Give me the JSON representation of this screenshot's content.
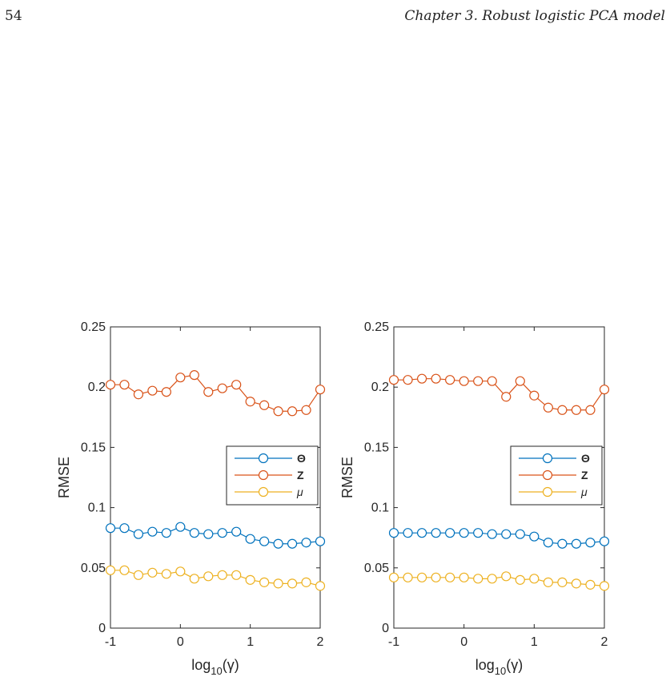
{
  "header": {
    "page_number": "54",
    "running_head": "Chapter 3.  Robust logistic PCA model"
  },
  "chart_data": [
    {
      "type": "line",
      "ylabel": "RMSE",
      "xlabel_parts": {
        "base": "log",
        "sub": "10",
        "arg": "(γ)"
      },
      "xlim": [
        -1,
        2
      ],
      "ylim": [
        0,
        0.25
      ],
      "x_ticks": [
        "-1",
        "0",
        "1",
        "2"
      ],
      "y_ticks": [
        "0",
        "0.05",
        "0.1",
        "0.15",
        "0.2",
        "0.25"
      ],
      "legend_position": "right-middle",
      "x": [
        -1,
        -0.8,
        -0.6,
        -0.4,
        -0.2,
        0.0,
        0.2,
        0.4,
        0.6,
        0.8,
        1.0,
        1.2,
        1.4,
        1.6,
        1.8,
        2.0
      ],
      "series": [
        {
          "name": "Θ",
          "color": "#0072BD",
          "values": [
            0.083,
            0.083,
            0.078,
            0.08,
            0.079,
            0.084,
            0.079,
            0.078,
            0.079,
            0.08,
            0.074,
            0.072,
            0.07,
            0.07,
            0.071,
            0.072
          ]
        },
        {
          "name": "Z",
          "color": "#D95319",
          "values": [
            0.202,
            0.202,
            0.194,
            0.197,
            0.196,
            0.208,
            0.21,
            0.196,
            0.199,
            0.202,
            0.188,
            0.185,
            0.18,
            0.18,
            0.181,
            0.198
          ]
        },
        {
          "name": "μ",
          "color": "#EDB120",
          "values": [
            0.048,
            0.048,
            0.044,
            0.046,
            0.045,
            0.047,
            0.041,
            0.043,
            0.044,
            0.044,
            0.04,
            0.038,
            0.037,
            0.037,
            0.038,
            0.035
          ]
        }
      ]
    },
    {
      "type": "line",
      "ylabel": "RMSE",
      "xlabel_parts": {
        "base": "log",
        "sub": "10",
        "arg": "(γ)"
      },
      "xlim": [
        -1,
        2
      ],
      "ylim": [
        0,
        0.25
      ],
      "x_ticks": [
        "-1",
        "0",
        "1",
        "2"
      ],
      "y_ticks": [
        "0",
        "0.05",
        "0.1",
        "0.15",
        "0.2",
        "0.25"
      ],
      "legend_position": "right-middle",
      "x": [
        -1,
        -0.8,
        -0.6,
        -0.4,
        -0.2,
        0.0,
        0.2,
        0.4,
        0.6,
        0.8,
        1.0,
        1.2,
        1.4,
        1.6,
        1.8,
        2.0
      ],
      "series": [
        {
          "name": "Θ",
          "color": "#0072BD",
          "values": [
            0.079,
            0.079,
            0.079,
            0.079,
            0.079,
            0.079,
            0.079,
            0.078,
            0.078,
            0.078,
            0.076,
            0.071,
            0.07,
            0.07,
            0.071,
            0.072
          ]
        },
        {
          "name": "Z",
          "color": "#D95319",
          "values": [
            0.206,
            0.206,
            0.207,
            0.207,
            0.206,
            0.205,
            0.205,
            0.205,
            0.192,
            0.205,
            0.193,
            0.183,
            0.181,
            0.181,
            0.181,
            0.198
          ]
        },
        {
          "name": "μ",
          "color": "#EDB120",
          "values": [
            0.042,
            0.042,
            0.042,
            0.042,
            0.042,
            0.042,
            0.041,
            0.041,
            0.043,
            0.04,
            0.041,
            0.038,
            0.038,
            0.037,
            0.036,
            0.035
          ]
        }
      ]
    }
  ]
}
